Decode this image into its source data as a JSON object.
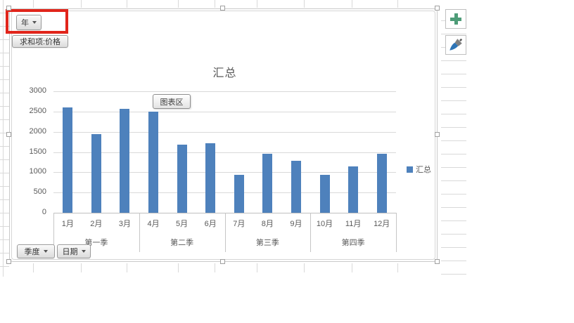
{
  "pivot_chart": {
    "field_buttons": {
      "year": "年",
      "value": "求和项:价格",
      "quarter": "季度",
      "date": "日期"
    },
    "tooltip": "图表区",
    "annotation_color": "#e1251b",
    "side_toolbar": {
      "add_label": "+",
      "add_icon_color": "#4e9c78",
      "style_icon_name": "paintbrush"
    }
  },
  "chart_data": {
    "type": "bar",
    "title": "汇总",
    "categories": [
      "1月",
      "2月",
      "3月",
      "4月",
      "5月",
      "6月",
      "7月",
      "8月",
      "9月",
      "10月",
      "11月",
      "12月"
    ],
    "group_labels": [
      "第一季",
      "第二季",
      "第三季",
      "第四季"
    ],
    "group_size": 3,
    "series": [
      {
        "name": "汇总",
        "values": [
          2600,
          1950,
          2570,
          2490,
          1690,
          1710,
          940,
          1450,
          1290,
          940,
          1150,
          1460
        ]
      }
    ],
    "ylim": [
      0,
      3000
    ],
    "yticks": [
      0,
      500,
      1000,
      1500,
      2000,
      2500,
      3000
    ],
    "xlabel": "",
    "ylabel": "",
    "legend": [
      "汇总"
    ],
    "legend_position": "right",
    "bar_color": "#4e81bc",
    "grid": true
  }
}
